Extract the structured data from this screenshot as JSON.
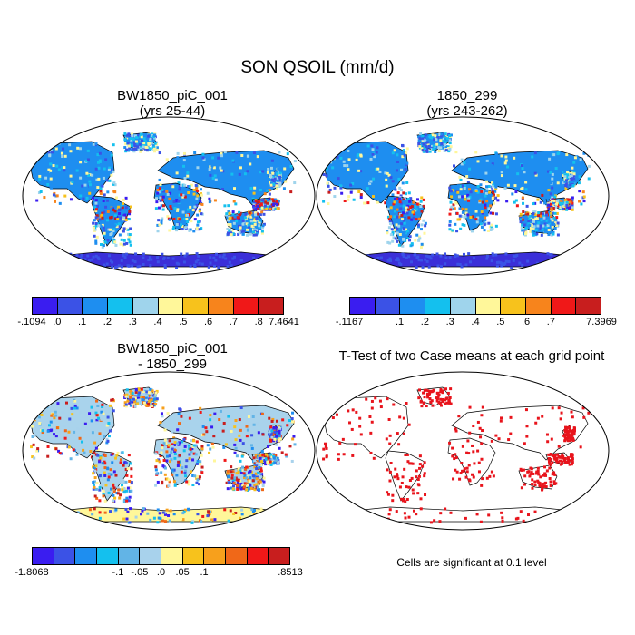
{
  "title": "SON QSOIL (mm/d)",
  "panels": {
    "p1": {
      "title_line1": "BW1850_piC_001",
      "title_line2": "(yrs 25-44)"
    },
    "p2": {
      "title_line1": "1850_299",
      "title_line2": "(yrs 243-262)"
    },
    "p3": {
      "title_line1": "BW1850_piC_001",
      "title_line2": "- 1850_299"
    },
    "p4": {
      "title_line1": "T-Test of two Case means at each grid point"
    }
  },
  "colorbars": {
    "cb1": {
      "colors": [
        "#3a1df0",
        "#3b52e6",
        "#1e8ef0",
        "#14c0ee",
        "#9fd4ec",
        "#fff79a",
        "#f7c21c",
        "#f7841c",
        "#f01818",
        "#c81e1e"
      ],
      "labels": [
        "-.1094",
        ".0",
        ".1",
        ".2",
        ".3",
        ".4",
        ".5",
        ".6",
        ".7",
        ".8",
        "7.4641"
      ]
    },
    "cb2": {
      "colors": [
        "#3a1df0",
        "#3b52e6",
        "#1e8ef0",
        "#14c0ee",
        "#9fd4ec",
        "#fff79a",
        "#f7c21c",
        "#f7841c",
        "#f01818",
        "#c81e1e"
      ],
      "labels": [
        "-.1167",
        ".1",
        ".2",
        ".3",
        ".4",
        ".5",
        ".6",
        ".7",
        "7.3969"
      ]
    },
    "cb3": {
      "colors": [
        "#3a1df0",
        "#3b52e6",
        "#1e8ef0",
        "#14c0ee",
        "#62b4e6",
        "#a8d2ec",
        "#fff79a",
        "#f7c21c",
        "#f7a01c",
        "#f06818",
        "#f01818",
        "#c81e1e"
      ],
      "labels": [
        "-1.8068",
        "-.1",
        "-.05",
        ".0",
        ".05",
        ".1",
        ".8513"
      ]
    }
  },
  "note": "Cells are significant at 0.1 level",
  "colors": {
    "ocean": "#ffffff",
    "land_diff_base": "#a9d3ec",
    "significant": "#e8141c",
    "antarctica_base": "#3b2fd8"
  }
}
